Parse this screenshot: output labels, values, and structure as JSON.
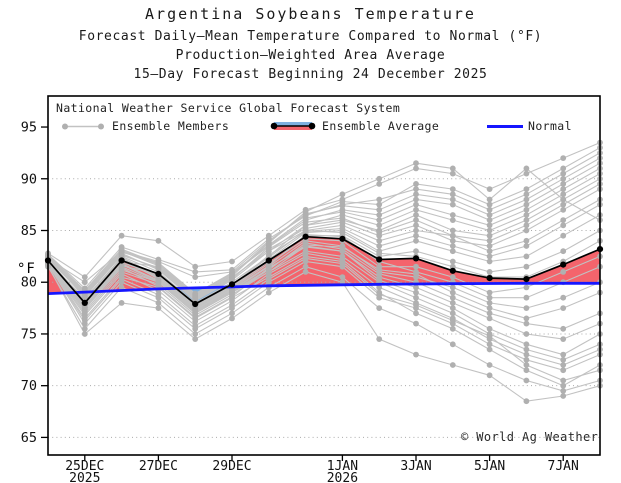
{
  "title": {
    "line1": "Argentina Soybeans Temperature",
    "line2": "Forecast Daily–Mean Temperature Compared to Normal (°F)",
    "line3": "Production–Weighted Area Average",
    "line4": "15–Day Forecast Beginning 24 December 2025"
  },
  "legend": {
    "header": "National Weather Service Global Forecast System",
    "members_label": "Ensemble Members",
    "average_label": "Ensemble Average",
    "normal_label": "Normal"
  },
  "axes": {
    "y_unit": "°F",
    "y_ticks": [
      65,
      70,
      75,
      80,
      85,
      90,
      95
    ],
    "y_grid": [
      65,
      70,
      75,
      80,
      85,
      90
    ],
    "x_ticks": [
      {
        "label": "25DEC",
        "year": "2025",
        "day": 1
      },
      {
        "label": "27DEC",
        "day": 3
      },
      {
        "label": "29DEC",
        "day": 5
      },
      {
        "label": "1JAN",
        "year": "2026",
        "day": 8
      },
      {
        "label": "3JAN",
        "day": 10
      },
      {
        "label": "5JAN",
        "day": 12
      },
      {
        "label": "7JAN",
        "day": 14
      }
    ]
  },
  "copyright": "© World Ag Weather",
  "colors": {
    "above_normal_fill": "#f4646c",
    "below_normal_fill": "#7eb1e0",
    "normal_line": "#1616ff",
    "member_line": "#c2c2c2",
    "member_dot": "#b0b0b0",
    "ensemble_average": "#000000",
    "grid": "#ababab",
    "frame": "#000000"
  },
  "chart_data": {
    "type": "line",
    "title": "Argentina Soybeans Temperature",
    "xlabel": "",
    "ylabel": "°F",
    "ylim": [
      63.3,
      98.0
    ],
    "grid": true,
    "legend_position": "top-left-inside",
    "x": [
      "24DEC",
      "25DEC",
      "26DEC",
      "27DEC",
      "28DEC",
      "29DEC",
      "30DEC",
      "31DEC",
      "1JAN",
      "2JAN",
      "3JAN",
      "4JAN",
      "5JAN",
      "6JAN",
      "7JAN",
      "8JAN"
    ],
    "series": [
      {
        "name": "Ensemble Average",
        "values": [
          82.1,
          78.0,
          82.1,
          80.8,
          77.9,
          79.8,
          82.1,
          84.4,
          84.2,
          82.2,
          82.3,
          81.1,
          80.4,
          80.3,
          81.7,
          83.2
        ]
      },
      {
        "name": "Normal",
        "values": [
          78.9,
          79.05,
          79.2,
          79.35,
          79.45,
          79.55,
          79.65,
          79.7,
          79.75,
          79.8,
          79.83,
          79.86,
          79.88,
          79.9,
          79.9,
          79.9
        ]
      }
    ],
    "members_name": "Ensemble Members",
    "members": [
      [
        82.5,
        78.5,
        82.0,
        81.5,
        78.5,
        80.5,
        83.0,
        85.0,
        85.5,
        84.0,
        85.0,
        84.5,
        83.0,
        84.0,
        86.0,
        88.0
      ],
      [
        82.0,
        77.5,
        81.5,
        80.0,
        77.0,
        79.0,
        81.0,
        83.5,
        83.0,
        80.5,
        79.5,
        78.0,
        76.5,
        75.0,
        74.5,
        76.0
      ],
      [
        81.8,
        76.5,
        80.5,
        79.5,
        76.5,
        78.5,
        80.5,
        82.5,
        82.0,
        79.0,
        77.0,
        75.5,
        73.5,
        71.5,
        70.0,
        72.0
      ],
      [
        82.3,
        80.0,
        83.0,
        82.0,
        80.5,
        81.0,
        84.0,
        86.5,
        87.5,
        88.0,
        89.0,
        88.5,
        87.0,
        88.5,
        90.5,
        92.5
      ],
      [
        82.0,
        78.0,
        82.5,
        81.0,
        78.0,
        80.0,
        82.5,
        85.5,
        86.0,
        85.0,
        86.5,
        85.0,
        84.5,
        86.0,
        88.0,
        90.0
      ],
      [
        81.5,
        75.5,
        79.5,
        78.0,
        75.0,
        77.0,
        79.5,
        81.5,
        80.5,
        77.5,
        76.0,
        74.0,
        72.0,
        70.5,
        69.5,
        70.5
      ],
      [
        82.8,
        80.5,
        84.5,
        84.0,
        81.5,
        82.0,
        84.5,
        87.0,
        88.0,
        89.5,
        91.0,
        90.5,
        89.0,
        90.5,
        92.0,
        93.5
      ],
      [
        82.2,
        78.2,
        82.2,
        80.5,
        77.5,
        79.5,
        82.0,
        84.5,
        84.5,
        82.5,
        83.0,
        82.0,
        81.0,
        81.5,
        83.0,
        85.0
      ],
      [
        81.9,
        77.0,
        81.0,
        79.8,
        76.8,
        78.8,
        81.0,
        83.0,
        82.5,
        80.0,
        78.5,
        77.0,
        75.0,
        73.5,
        72.5,
        74.0
      ],
      [
        82.6,
        79.2,
        83.2,
        81.8,
        78.8,
        80.8,
        83.5,
        86.0,
        87.0,
        86.5,
        88.0,
        87.5,
        86.0,
        87.5,
        89.5,
        91.5
      ],
      [
        82.1,
        77.8,
        81.8,
        80.2,
        77.2,
        79.2,
        81.5,
        84.0,
        83.5,
        81.0,
        80.5,
        79.5,
        78.0,
        77.5,
        78.5,
        80.0
      ],
      [
        82.4,
        78.8,
        82.8,
        81.2,
        78.2,
        80.2,
        83.0,
        85.5,
        86.5,
        85.5,
        87.0,
        86.0,
        85.0,
        86.5,
        88.5,
        90.5
      ],
      [
        81.7,
        76.0,
        80.0,
        78.5,
        75.5,
        77.5,
        80.0,
        82.0,
        81.5,
        78.5,
        77.5,
        76.0,
        74.0,
        72.5,
        71.5,
        73.0
      ],
      [
        82.0,
        78.4,
        82.4,
        80.6,
        77.6,
        79.6,
        82.2,
        84.8,
        85.0,
        83.0,
        84.0,
        83.0,
        82.0,
        82.5,
        84.5,
        86.5
      ],
      [
        82.3,
        78.6,
        82.6,
        81.4,
        78.4,
        80.4,
        83.2,
        85.2,
        85.8,
        84.5,
        85.5,
        84.0,
        83.5,
        85.0,
        87.0,
        89.0
      ],
      [
        81.6,
        75.0,
        78.0,
        77.5,
        74.5,
        76.5,
        79.0,
        81.0,
        80.0,
        74.5,
        73.0,
        72.0,
        71.0,
        68.5,
        69.0,
        70.0
      ],
      [
        82.2,
        78.1,
        82.1,
        80.4,
        77.4,
        79.4,
        81.8,
        84.2,
        84.0,
        81.5,
        81.5,
        80.5,
        79.0,
        79.5,
        81.0,
        82.5
      ],
      [
        82.5,
        79.0,
        83.0,
        81.6,
        78.6,
        80.6,
        83.8,
        86.8,
        88.5,
        90.0,
        91.5,
        91.0,
        88.0,
        91.0,
        88.0,
        86.0
      ],
      [
        81.8,
        76.8,
        80.8,
        79.2,
        76.2,
        78.2,
        80.8,
        82.8,
        82.2,
        79.5,
        78.0,
        76.5,
        74.5,
        73.0,
        72.0,
        73.5
      ],
      [
        82.0,
        77.2,
        81.2,
        80.0,
        77.0,
        79.0,
        81.2,
        83.8,
        83.2,
        80.8,
        80.0,
        78.5,
        77.0,
        76.0,
        75.5,
        77.0
      ],
      [
        82.7,
        79.4,
        83.4,
        82.2,
        81.0,
        81.2,
        84.2,
        86.4,
        87.8,
        87.5,
        89.5,
        89.0,
        87.5,
        89.0,
        91.0,
        93.0
      ],
      [
        82.1,
        77.6,
        81.6,
        80.8,
        77.8,
        79.8,
        82.4,
        85.0,
        84.8,
        82.8,
        82.5,
        81.5,
        80.5,
        80.5,
        82.0,
        84.0
      ],
      [
        81.9,
        77.4,
        81.4,
        79.6,
        76.6,
        78.6,
        81.4,
        83.4,
        83.0,
        80.2,
        79.0,
        77.5,
        75.5,
        74.0,
        73.0,
        75.0
      ],
      [
        82.4,
        78.9,
        82.9,
        81.9,
        78.9,
        80.9,
        83.6,
        86.2,
        86.8,
        86.0,
        87.5,
        86.5,
        85.5,
        87.0,
        89.0,
        91.0
      ],
      [
        82.0,
        78.3,
        82.3,
        80.3,
        77.3,
        79.3,
        81.6,
        84.6,
        84.4,
        82.0,
        81.0,
        80.0,
        78.5,
        78.5,
        80.0,
        81.5
      ],
      [
        82.2,
        77.9,
        81.9,
        80.7,
        77.7,
        79.7,
        82.6,
        84.9,
        85.2,
        83.5,
        84.5,
        83.5,
        82.5,
        83.5,
        85.5,
        87.5
      ],
      [
        81.7,
        76.3,
        80.3,
        78.8,
        75.8,
        77.8,
        80.3,
        82.3,
        81.8,
        78.8,
        77.8,
        76.3,
        74.8,
        72.0,
        70.5,
        71.5
      ],
      [
        82.6,
        79.1,
        83.1,
        81.7,
        78.7,
        80.7,
        83.9,
        86.6,
        87.4,
        87.0,
        88.5,
        88.0,
        86.5,
        88.0,
        90.0,
        92.0
      ],
      [
        82.0,
        77.7,
        81.7,
        80.1,
        77.1,
        79.1,
        81.3,
        83.6,
        83.4,
        81.2,
        80.8,
        79.0,
        77.5,
        76.5,
        77.5,
        79.0
      ],
      [
        82.3,
        78.7,
        82.7,
        81.3,
        78.3,
        80.3,
        83.4,
        85.8,
        86.2,
        84.8,
        86.0,
        84.5,
        84.0,
        85.5,
        87.5,
        89.5
      ]
    ]
  }
}
